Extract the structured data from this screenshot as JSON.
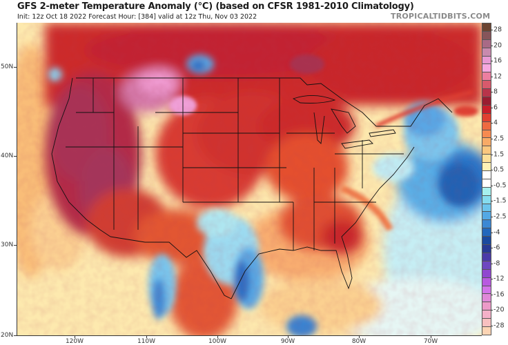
{
  "header": {
    "title": "GFS 2-meter Temperature Anomaly (°C) (based on CFSR 1981-2010 Climatology)",
    "subtitle": "Init: 12z Oct 18 2022   Forecast Hour: [384]   valid at 12z Thu, Nov 03 2022",
    "brand": "TROPICALTIDBITS.COM"
  },
  "map": {
    "model": "GFS",
    "variable": "2-meter Temperature Anomaly",
    "units": "°C",
    "climatology": "CFSR 1981-2010",
    "init": "12z Oct 18 2022",
    "forecast_hour": "384",
    "valid": "12z Thu, Nov 03 2022",
    "region": "Continental United States",
    "lat_labels": [
      "50N",
      "40N",
      "30N",
      "20N"
    ],
    "lon_labels": [
      "120W",
      "110W",
      "100W",
      "90W",
      "80W",
      "70W"
    ],
    "features": {
      "warm_anomalies": [
        "Western US / Great Basin",
        "Northern Rockies / southern Canada",
        "Great Lakes",
        "Southeast US"
      ],
      "cold_anomalies": [
        "Texas / Gulf coast",
        "Northeast US / New England",
        "Western Atlantic offshore",
        "Saskatchewan / Montana border",
        "Mexican highlands"
      ]
    }
  },
  "colorbar": {
    "labels": [
      "28",
      "20",
      "16",
      "12",
      "8",
      "6",
      "4",
      "2.5",
      "1.5",
      "0.5",
      "-0.5",
      "-1.5",
      "-2.5",
      "-4",
      "-6",
      "-8",
      "-12",
      "-16",
      "-20",
      "-28"
    ],
    "colors": [
      "#6b4431",
      "#86555a",
      "#a86a86",
      "#c88aae",
      "#e89ad4",
      "#f6a8e0",
      "#ec7ea0",
      "#d85a6c",
      "#b8344a",
      "#9a1c30",
      "#c81e2a",
      "#e04030",
      "#ee6a40",
      "#f68a50",
      "#f8aa66",
      "#fbc77e",
      "#fde09a",
      "#fff2b6",
      "#ffffff",
      "#ffffff",
      "#a6f0ee",
      "#86dcee",
      "#6cc4ec",
      "#54a8e4",
      "#3c88d4",
      "#2268bc",
      "#1a4a9e",
      "#283a94",
      "#4a3aa8",
      "#6e48c0",
      "#9048d0",
      "#b85ae0",
      "#d274e8",
      "#e088d8",
      "#ec9ac8",
      "#f4b0c8",
      "#f8c0c0",
      "#fcd4b4"
    ]
  },
  "axes": {
    "x_title": "",
    "y_title": ""
  }
}
